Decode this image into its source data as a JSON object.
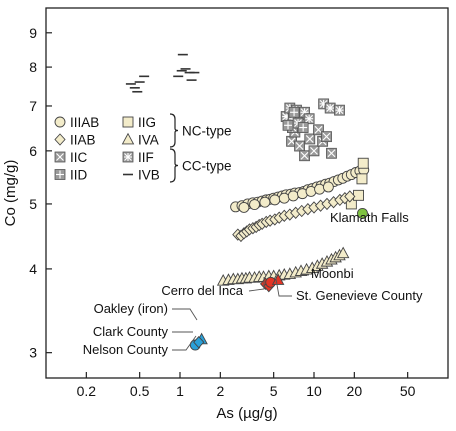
{
  "chart_data": {
    "type": "scatter",
    "title": "",
    "xlabel": "As (µg/g)",
    "ylabel": "Co (mg/g)",
    "xscale": "log",
    "yscale": "log",
    "xlim": [
      0.1,
      100
    ],
    "ylim": [
      2.75,
      9.8
    ],
    "grid": false,
    "x_ticks": [
      0.2,
      0.5,
      1,
      2,
      5,
      10,
      20,
      50
    ],
    "x_tick_labels": [
      "0.2",
      "0.5",
      "1",
      "2",
      "5",
      "10",
      "20",
      "50"
    ],
    "y_ticks": [
      3,
      4,
      5,
      6,
      7,
      8,
      9
    ],
    "y_tick_labels": [
      "3",
      "4",
      "5",
      "6",
      "7",
      "8",
      "9"
    ],
    "legend": {
      "placement": "center-left",
      "entries": [
        {
          "name": "IIIAB",
          "marker": "circle"
        },
        {
          "name": "IIG",
          "marker": "square"
        },
        {
          "name": "IIAB",
          "marker": "diamond"
        },
        {
          "name": "IVA",
          "marker": "triangle"
        },
        {
          "name": "IIC",
          "marker": "x-square"
        },
        {
          "name": "IIF",
          "marker": "star-square"
        },
        {
          "name": "IID",
          "marker": "plus-square"
        },
        {
          "name": "IVB",
          "marker": "dash"
        }
      ],
      "groups": [
        {
          "label": "NC-type",
          "members": [
            "IIIAB",
            "IIG",
            "IIAB",
            "IVA"
          ]
        },
        {
          "label": "CC-type",
          "members": [
            "IIC",
            "IIF",
            "IID",
            "IVB"
          ]
        }
      ]
    },
    "series": [
      {
        "name": "IIIAB",
        "marker": "circle",
        "color": "#f3ecca",
        "x": [
          2.6,
          2.9,
          3.2,
          3.5,
          3.8,
          4.1,
          4.4,
          4.7,
          5.0,
          5.4,
          5.8,
          6.2,
          6.7,
          7.2,
          7.8,
          8.4,
          9.0,
          9.7,
          10.5,
          11.3,
          12.2,
          13.1,
          14.1,
          15.2,
          16.4,
          17.7,
          19.0,
          20.5,
          22.0,
          23.5,
          3.0,
          3.6,
          4.3,
          5.1,
          6.0,
          7.0,
          8.2,
          9.5,
          11.0,
          12.8
        ],
        "y": [
          4.95,
          4.97,
          5.0,
          5.02,
          5.03,
          5.05,
          5.07,
          5.08,
          5.1,
          5.12,
          5.14,
          5.16,
          5.17,
          5.19,
          5.2,
          5.22,
          5.25,
          5.27,
          5.3,
          5.32,
          5.35,
          5.37,
          5.4,
          5.43,
          5.46,
          5.5,
          5.53,
          5.57,
          5.6,
          5.62,
          4.94,
          4.99,
          5.03,
          5.07,
          5.1,
          5.14,
          5.18,
          5.22,
          5.26,
          5.3
        ]
      },
      {
        "name": "IIG",
        "marker": "square",
        "color": "#f3ecca",
        "x": [
          19.0,
          21.5,
          22.8,
          23.3
        ],
        "y": [
          5.0,
          5.15,
          5.45,
          5.75
        ]
      },
      {
        "name": "IIAB",
        "marker": "diamond",
        "color": "#f3ecca",
        "x": [
          2.7,
          2.85,
          3.0,
          3.15,
          3.3,
          3.5,
          3.7,
          3.9,
          4.1,
          4.4,
          4.7,
          5.1,
          5.5,
          6.0,
          6.6,
          7.3,
          8.1,
          9.0,
          10.0,
          11.2,
          12.5,
          14.0,
          15.6,
          17.0,
          18.5
        ],
        "y": [
          4.5,
          4.48,
          4.52,
          4.55,
          4.58,
          4.6,
          4.62,
          4.65,
          4.67,
          4.7,
          4.72,
          4.74,
          4.77,
          4.8,
          4.82,
          4.85,
          4.88,
          4.91,
          4.94,
          4.97,
          5.0,
          5.03,
          5.07,
          5.1,
          5.13
        ]
      },
      {
        "name": "IVA",
        "marker": "triangle",
        "color": "#f3ecca",
        "x": [
          2.1,
          2.3,
          2.5,
          2.7,
          2.9,
          3.1,
          3.3,
          3.6,
          3.9,
          4.2,
          4.6,
          5.0,
          5.5,
          6.0,
          6.6,
          7.3,
          8.0,
          8.8,
          9.7,
          10.6,
          11.5,
          12.5,
          13.5,
          14.5,
          15.5,
          16.5
        ],
        "y": [
          3.84,
          3.85,
          3.86,
          3.86,
          3.87,
          3.87,
          3.88,
          3.88,
          3.89,
          3.89,
          3.9,
          3.9,
          3.91,
          3.92,
          3.93,
          3.95,
          3.97,
          3.99,
          4.01,
          4.04,
          4.07,
          4.1,
          4.13,
          4.16,
          4.19,
          4.22
        ]
      },
      {
        "name": "IIC",
        "marker": "x-square",
        "color": "#888888",
        "x": [
          6.8,
          7.2,
          7.8,
          8.5,
          9.3,
          10.0,
          10.8,
          11.6,
          12.4,
          13.5
        ],
        "y": [
          6.2,
          6.4,
          6.1,
          5.9,
          6.25,
          6.0,
          6.45,
          6.2,
          6.3,
          5.95
        ]
      },
      {
        "name": "IIF",
        "marker": "star-square",
        "color": "#888888",
        "x": [
          6.2,
          6.6,
          7.0,
          7.4,
          7.9,
          8.5,
          9.2,
          11.8,
          13.2,
          15.5,
          6.9,
          7.6
        ],
        "y": [
          6.75,
          6.95,
          6.7,
          6.9,
          6.8,
          6.85,
          6.7,
          7.05,
          6.95,
          6.9,
          6.5,
          6.6
        ]
      },
      {
        "name": "IID",
        "marker": "plus-square",
        "color": "#888888",
        "x": [
          6.4,
          7.1,
          8.3
        ],
        "y": [
          6.55,
          6.85,
          6.5
        ]
      },
      {
        "name": "IVB",
        "marker": "dash",
        "color": "#333333",
        "x": [
          0.43,
          0.46,
          0.48,
          0.5,
          0.54,
          0.97,
          1.03,
          1.1,
          1.18,
          1.28,
          1.05,
          1.22
        ],
        "y": [
          7.55,
          7.45,
          7.35,
          7.6,
          7.75,
          7.75,
          7.9,
          7.95,
          7.85,
          7.85,
          8.35,
          7.65
        ]
      },
      {
        "name": "Klamath Falls",
        "marker": "circle",
        "color": "#7fc241",
        "x": [
          23.0
        ],
        "y": [
          4.84
        ]
      },
      {
        "name": "Cerro del Inca",
        "marker": "diamond",
        "color": "#e23526",
        "x": [
          4.35,
          4.6
        ],
        "y": [
          3.8,
          3.77
        ]
      },
      {
        "name": "St. Genevieve County",
        "marker": "circle",
        "color": "#e23526",
        "x": [
          4.75
        ],
        "y": [
          3.82
        ]
      },
      {
        "name": "Moonbi",
        "marker": "triangle",
        "color": "#e23526",
        "x": [
          5.4
        ],
        "y": [
          3.85
        ]
      },
      {
        "name": "Oakley (iron)",
        "marker": "triangle",
        "color": "#2aa0d8",
        "x": [
          1.45
        ],
        "y": [
          3.14
        ]
      },
      {
        "name": "Clark County",
        "marker": "circle",
        "color": "#2aa0d8",
        "x": [
          1.3
        ],
        "y": [
          3.08
        ]
      },
      {
        "name": "Nelson County",
        "marker": "diamond",
        "color": "#2aa0d8",
        "x": [
          1.38
        ],
        "y": [
          3.11
        ]
      }
    ],
    "annotations": [
      {
        "text": "Klamath Falls",
        "x": 23.0,
        "y": 4.84
      },
      {
        "text": "Moonbi",
        "x": 5.4,
        "y": 3.85
      },
      {
        "text": "Cerro del Inca",
        "x": 4.35,
        "y": 3.8
      },
      {
        "text": "St. Genevieve County",
        "x": 4.75,
        "y": 3.82
      },
      {
        "text": "Oakley (iron)",
        "x": 1.45,
        "y": 3.14
      },
      {
        "text": "Clark County",
        "x": 1.3,
        "y": 3.08
      },
      {
        "text": "Nelson County",
        "x": 1.38,
        "y": 3.11
      }
    ]
  }
}
